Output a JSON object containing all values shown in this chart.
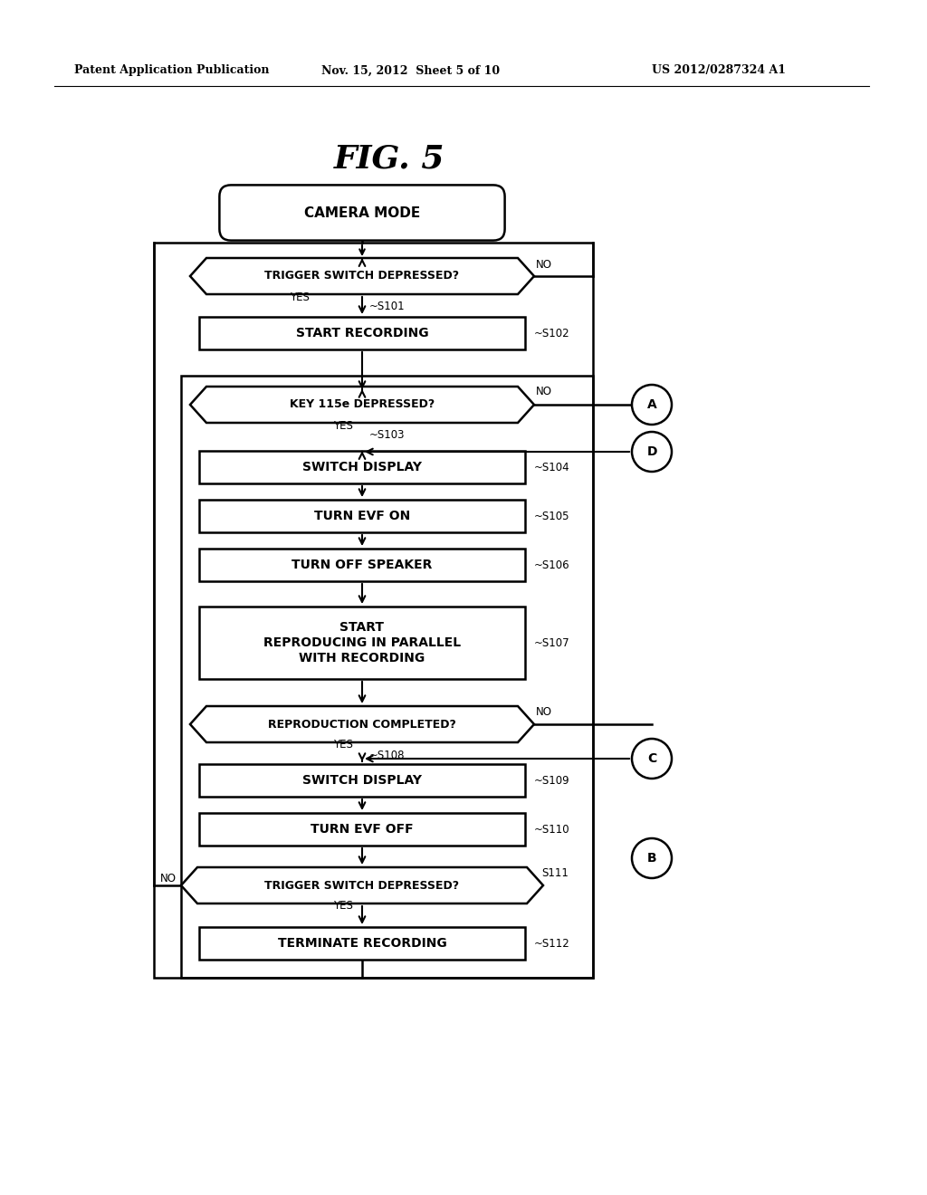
{
  "title": "FIG. 5",
  "header_left": "Patent Application Publication",
  "header_center": "Nov. 15, 2012  Sheet 5 of 10",
  "header_right": "US 2012/0287324 A1",
  "bg_color": "#ffffff",
  "fig_width": 10.24,
  "fig_height": 13.2,
  "dpi": 100,
  "nodes": {
    "camera_mode": {
      "text": "CAMERA MODE"
    },
    "S101": {
      "text": "TRIGGER SWITCH DEPRESSED?",
      "label": "~S101"
    },
    "S102": {
      "text": "START RECORDING",
      "label": "~S102"
    },
    "S103": {
      "text": "KEY 115e DEPRESSED?",
      "label": "~S103"
    },
    "S104": {
      "text": "SWITCH DISPLAY",
      "label": "~S104"
    },
    "S105": {
      "text": "TURN EVF ON",
      "label": "~S105"
    },
    "S106": {
      "text": "TURN OFF SPEAKER",
      "label": "~S106"
    },
    "S107": {
      "text": "START\nREPRODUCING IN PARALLEL\nWITH RECORDING",
      "label": "~S107"
    },
    "S108": {
      "text": "REPRODUCTION COMPLETED?",
      "label": "~S108"
    },
    "S109": {
      "text": "SWITCH DISPLAY",
      "label": "~S109"
    },
    "S110": {
      "text": "TURN EVF OFF",
      "label": "~S110"
    },
    "S111": {
      "text": "TRIGGER SWITCH DEPRESSED?",
      "label": "S111"
    },
    "S112": {
      "text": "TERMINATE RECORDING",
      "label": "~S112"
    }
  }
}
